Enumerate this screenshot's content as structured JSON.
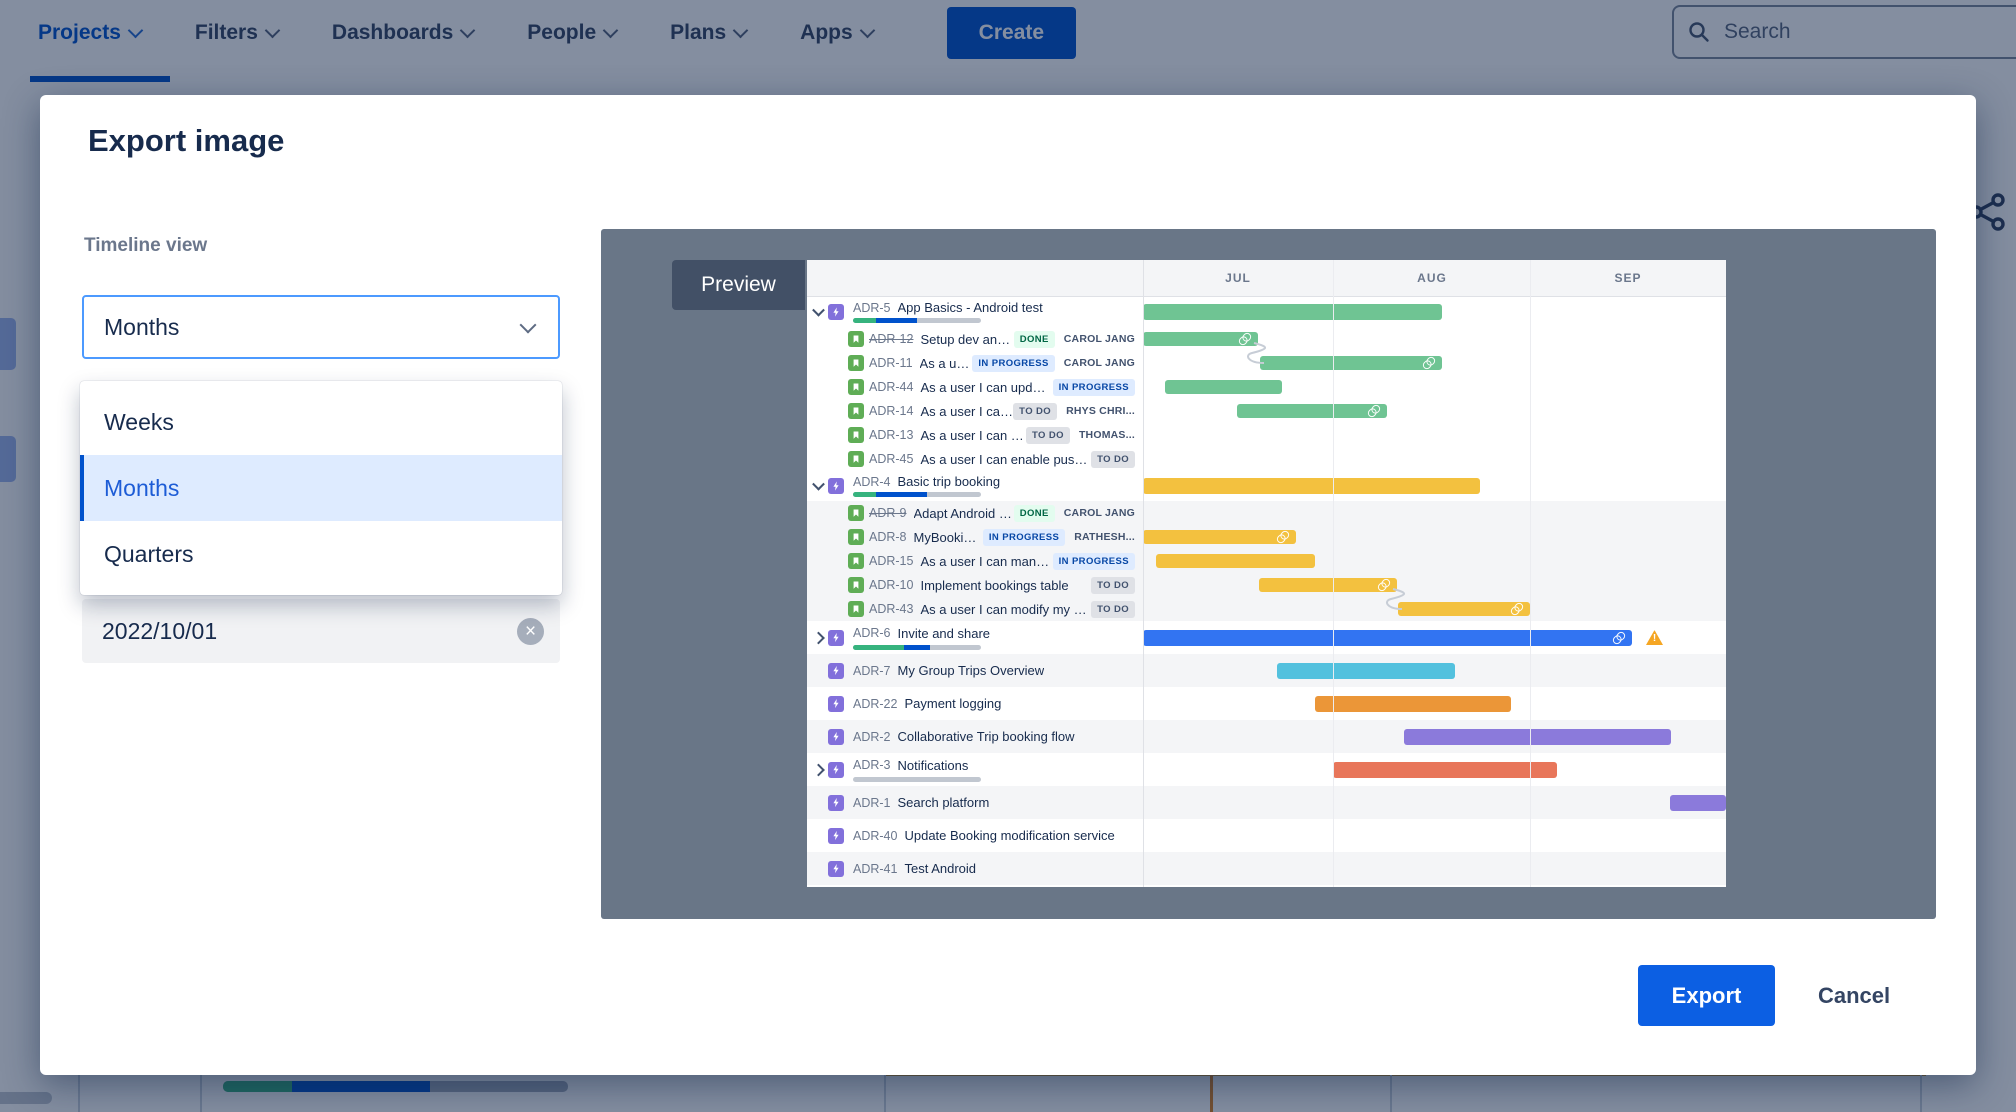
{
  "nav": {
    "items": [
      {
        "label": "Projects",
        "active": true
      },
      {
        "label": "Filters",
        "active": false
      },
      {
        "label": "Dashboards",
        "active": false
      },
      {
        "label": "People",
        "active": false
      },
      {
        "label": "Plans",
        "active": false
      },
      {
        "label": "Apps",
        "active": false
      }
    ],
    "create_label": "Create",
    "search_placeholder": "Search"
  },
  "modal": {
    "title": "Export image",
    "timeline_view_label": "Timeline view",
    "select_value": "Months",
    "options": [
      "Weeks",
      "Months",
      "Quarters"
    ],
    "selected_option": "Months",
    "date_value": "2022/10/01",
    "clear_icon": "×",
    "preview_label": "Preview",
    "export_label": "Export",
    "cancel_label": "Cancel"
  },
  "chart": {
    "months": [
      "JUL",
      "AUG",
      "SEP"
    ],
    "month_centers": [
      95,
      289,
      485
    ],
    "month_lines": [
      190,
      387
    ],
    "timeline_width": 583,
    "rows": [
      {
        "key": "ADR-5",
        "title": "App Basics - Android test",
        "kind": "epic",
        "chevron": "down",
        "progress": {
          "g": 18,
          "b": 32
        },
        "bar": {
          "s": 0,
          "e": 299,
          "color": "green"
        }
      },
      {
        "key": "ADR-12",
        "title": "Setup dev and and build e...",
        "kind": "child",
        "done": true,
        "status": "DONE",
        "assignee": "CAROL JANG",
        "bar": {
          "s": 0,
          "e": 115,
          "color": "green",
          "link": true
        }
      },
      {
        "key": "ADR-11",
        "title": "As a user I can log i...",
        "kind": "child",
        "status": "IN PROGRESS",
        "assignee": "CAROL JANG",
        "bar": {
          "s": 117,
          "e": 299,
          "color": "green",
          "link": true
        }
      },
      {
        "key": "ADR-44",
        "title": "As a user I can update my login d...",
        "kind": "child",
        "status": "IN PROGRESS",
        "bar": {
          "s": 22,
          "e": 139,
          "color": "green"
        }
      },
      {
        "key": "ADR-14",
        "title": "As a user I can create a c...",
        "kind": "child",
        "status": "TO DO",
        "assignee": "RHYS CHRI...",
        "bar": {
          "s": 94,
          "e": 244,
          "color": "green",
          "link": true
        }
      },
      {
        "key": "ADR-13",
        "title": "As a user I can log into the...",
        "kind": "child",
        "status": "TO DO",
        "assignee": "THOMAS..."
      },
      {
        "key": "ADR-45",
        "title": "As a user I can enable push notifications",
        "kind": "child",
        "status": "TO DO"
      },
      {
        "key": "ADR-4",
        "title": "Basic trip booking",
        "kind": "epic",
        "chevron": "down",
        "progress": {
          "g": 18,
          "b": 40
        },
        "bar": {
          "s": 0,
          "e": 337,
          "color": "yellow"
        }
      },
      {
        "key": "ADR-9",
        "title": "Adapt Android app to new...",
        "kind": "child",
        "done": true,
        "status": "DONE",
        "assignee": "CAROL JANG",
        "shaded": true
      },
      {
        "key": "ADR-8",
        "title": "MyBookings page",
        "kind": "child",
        "status": "IN PROGRESS",
        "assignee": "RATHESH...",
        "shaded": true,
        "bar": {
          "s": 0,
          "e": 153,
          "color": "yellow",
          "link": true
        }
      },
      {
        "key": "ADR-15",
        "title": "As a user I can manage my profile",
        "kind": "child",
        "status": "IN PROGRESS",
        "shaded": true,
        "bar": {
          "s": 13,
          "e": 172,
          "color": "yellow"
        }
      },
      {
        "key": "ADR-10",
        "title": "Implement bookings table",
        "kind": "child",
        "status": "TO DO",
        "shaded": true,
        "bar": {
          "s": 116,
          "e": 254,
          "color": "yellow",
          "link": true
        }
      },
      {
        "key": "ADR-43",
        "title": "As a user I can modify my booking",
        "kind": "child",
        "status": "TO DO",
        "shaded": true,
        "bar": {
          "s": 255,
          "e": 387,
          "color": "yellow",
          "link": true
        }
      },
      {
        "key": "ADR-6",
        "title": "Invite and share",
        "kind": "solo",
        "chevron": "right",
        "progress": {
          "g": 40,
          "b": 20
        },
        "bar": {
          "s": 0,
          "e": 489,
          "color": "blue",
          "link": true,
          "warn": true
        }
      },
      {
        "key": "ADR-7",
        "title": "My Group Trips Overview",
        "kind": "solo",
        "shaded": true,
        "bar": {
          "s": 134,
          "e": 312,
          "color": "cyan"
        }
      },
      {
        "key": "ADR-22",
        "title": "Payment logging",
        "kind": "solo",
        "bar": {
          "s": 172,
          "e": 368,
          "color": "orange"
        }
      },
      {
        "key": "ADR-2",
        "title": "Collaborative Trip booking flow",
        "kind": "solo",
        "shaded": true,
        "bar": {
          "s": 261,
          "e": 528,
          "color": "purple"
        }
      },
      {
        "key": "ADR-3",
        "title": "Notifications",
        "kind": "solo",
        "chevron": "right",
        "progress": {
          "g": 0,
          "b": 0
        },
        "bar": {
          "s": 190,
          "e": 414,
          "color": "salmon"
        }
      },
      {
        "key": "ADR-1",
        "title": "Search platform",
        "kind": "solo",
        "shaded": true,
        "bar": {
          "s": 527,
          "e": 583,
          "color": "purple"
        }
      },
      {
        "key": "ADR-40",
        "title": "Update Booking modification service",
        "kind": "solo"
      },
      {
        "key": "ADR-41",
        "title": "Test Android",
        "kind": "solo",
        "shaded": true
      }
    ],
    "connectors": [
      {
        "from": 1,
        "to": 2
      },
      {
        "from": 11,
        "to": 12
      }
    ]
  },
  "colors": {
    "green": "#6FC493",
    "yellow": "#F3C13F",
    "blue": "#3274F2",
    "cyan": "#53C1DE",
    "orange": "#EB9638",
    "purple": "#8B7ADB",
    "salmon": "#E8765A",
    "statuses": {
      "DONE": {
        "bg": "#E3FCEF",
        "fg": "#006644"
      },
      "IN PROGRESS": {
        "bg": "#DEEBFF",
        "fg": "#0747A6"
      },
      "TO DO": {
        "bg": "#DFE1E6",
        "fg": "#42526E"
      }
    }
  }
}
